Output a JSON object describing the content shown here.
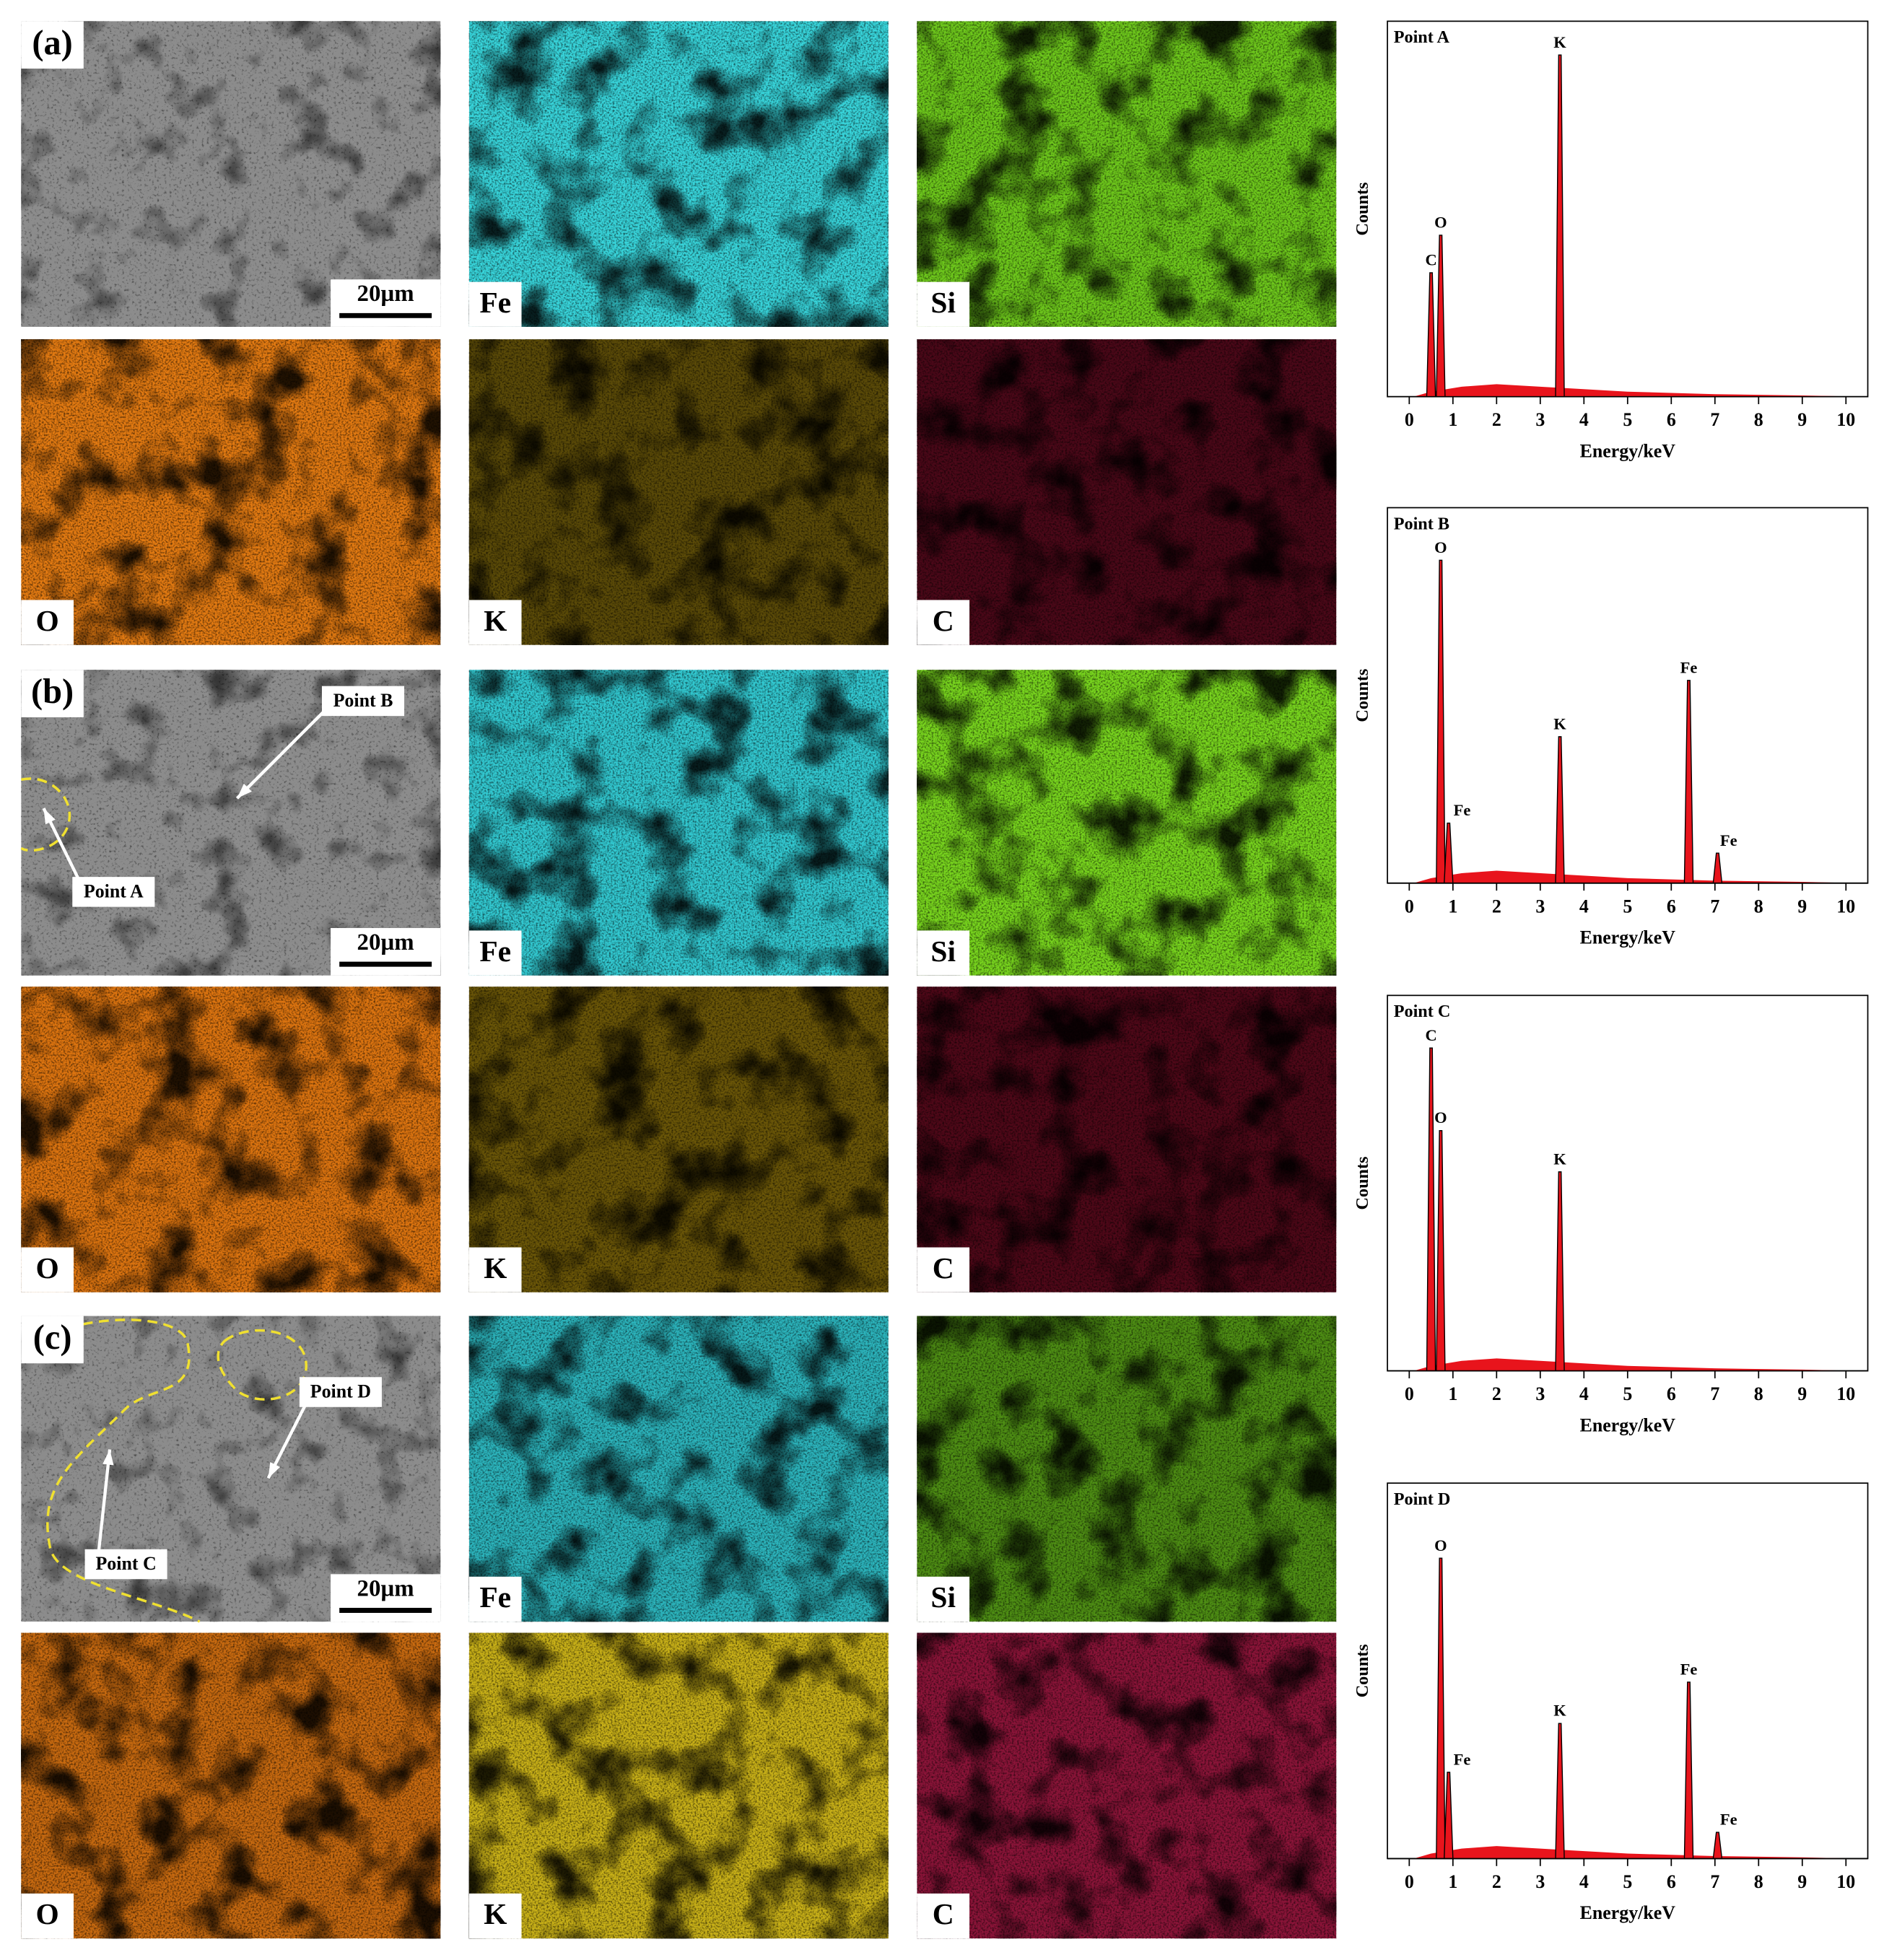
{
  "groups": [
    {
      "label": "(a)",
      "scale_bar": "20µm",
      "points": [],
      "maps": [
        {
          "element": "Fe",
          "color": "#38d4da"
        },
        {
          "element": "Si",
          "color": "#6ec81c"
        },
        {
          "element": "O",
          "color": "#e27a12"
        },
        {
          "element": "K",
          "color": "#5a4a08"
        },
        {
          "element": "C",
          "color": "#4a0818"
        }
      ]
    },
    {
      "label": "(b)",
      "scale_bar": "20µm",
      "points": [
        "Point B",
        "Point A"
      ],
      "maps": [
        {
          "element": "Fe",
          "color": "#32c8d0"
        },
        {
          "element": "Si",
          "color": "#78d41e"
        },
        {
          "element": "O",
          "color": "#dc7410"
        },
        {
          "element": "K",
          "color": "#6a5608"
        },
        {
          "element": "C",
          "color": "#4e0818"
        }
      ]
    },
    {
      "label": "(c)",
      "scale_bar": "20µm",
      "points": [
        "Point D",
        "Point C"
      ],
      "maps": [
        {
          "element": "Fe",
          "color": "#2cb4bc"
        },
        {
          "element": "Si",
          "color": "#4e8e14"
        },
        {
          "element": "O",
          "color": "#c86a10"
        },
        {
          "element": "K",
          "color": "#c8b018"
        },
        {
          "element": "C",
          "color": "#8a1438"
        }
      ]
    }
  ],
  "spectra": [
    {
      "title": "Point A",
      "xlabel": "Energy/keV",
      "ylabel": "Counts",
      "xlim": [
        -0.5,
        10.5
      ],
      "ylim": [
        0,
        1
      ],
      "xticks": [
        0,
        1,
        2,
        3,
        4,
        5,
        6,
        7,
        8,
        9,
        10
      ],
      "peaks": [
        {
          "label": "C",
          "energy": 0.5,
          "height": 0.33
        },
        {
          "label": "O",
          "energy": 0.72,
          "height": 0.43
        },
        {
          "label": "K",
          "energy": 3.45,
          "height": 0.91
        }
      ]
    },
    {
      "title": "Point B",
      "xlabel": "Energy/keV",
      "ylabel": "Counts",
      "xlim": [
        -0.5,
        10.5
      ],
      "ylim": [
        0,
        1
      ],
      "xticks": [
        0,
        1,
        2,
        3,
        4,
        5,
        6,
        7,
        8,
        9,
        10
      ],
      "peaks": [
        {
          "label": "O",
          "energy": 0.72,
          "height": 0.86
        },
        {
          "label": "Fe",
          "energy": 0.9,
          "height": 0.16
        },
        {
          "label": "K",
          "energy": 3.45,
          "height": 0.39
        },
        {
          "label": "Fe",
          "energy": 6.4,
          "height": 0.54
        },
        {
          "label": "Fe",
          "energy": 7.06,
          "height": 0.08
        }
      ]
    },
    {
      "title": "Point C",
      "xlabel": "Energy/keV",
      "ylabel": "Counts",
      "xlim": [
        -0.5,
        10.5
      ],
      "ylim": [
        0,
        1
      ],
      "xticks": [
        0,
        1,
        2,
        3,
        4,
        5,
        6,
        7,
        8,
        9,
        10
      ],
      "peaks": [
        {
          "label": "C",
          "energy": 0.5,
          "height": 0.86
        },
        {
          "label": "O",
          "energy": 0.72,
          "height": 0.64
        },
        {
          "label": "K",
          "energy": 3.45,
          "height": 0.53
        }
      ]
    },
    {
      "title": "Point D",
      "xlabel": "Energy/keV",
      "ylabel": "Counts",
      "xlim": [
        -0.5,
        10.5
      ],
      "ylim": [
        0,
        1
      ],
      "xticks": [
        0,
        1,
        2,
        3,
        4,
        5,
        6,
        7,
        8,
        9,
        10
      ],
      "peaks": [
        {
          "label": "O",
          "energy": 0.72,
          "height": 0.8
        },
        {
          "label": "Fe",
          "energy": 0.9,
          "height": 0.23
        },
        {
          "label": "K",
          "energy": 3.45,
          "height": 0.36
        },
        {
          "label": "Fe",
          "energy": 6.4,
          "height": 0.47
        },
        {
          "label": "Fe",
          "energy": 7.06,
          "height": 0.07
        }
      ]
    }
  ]
}
